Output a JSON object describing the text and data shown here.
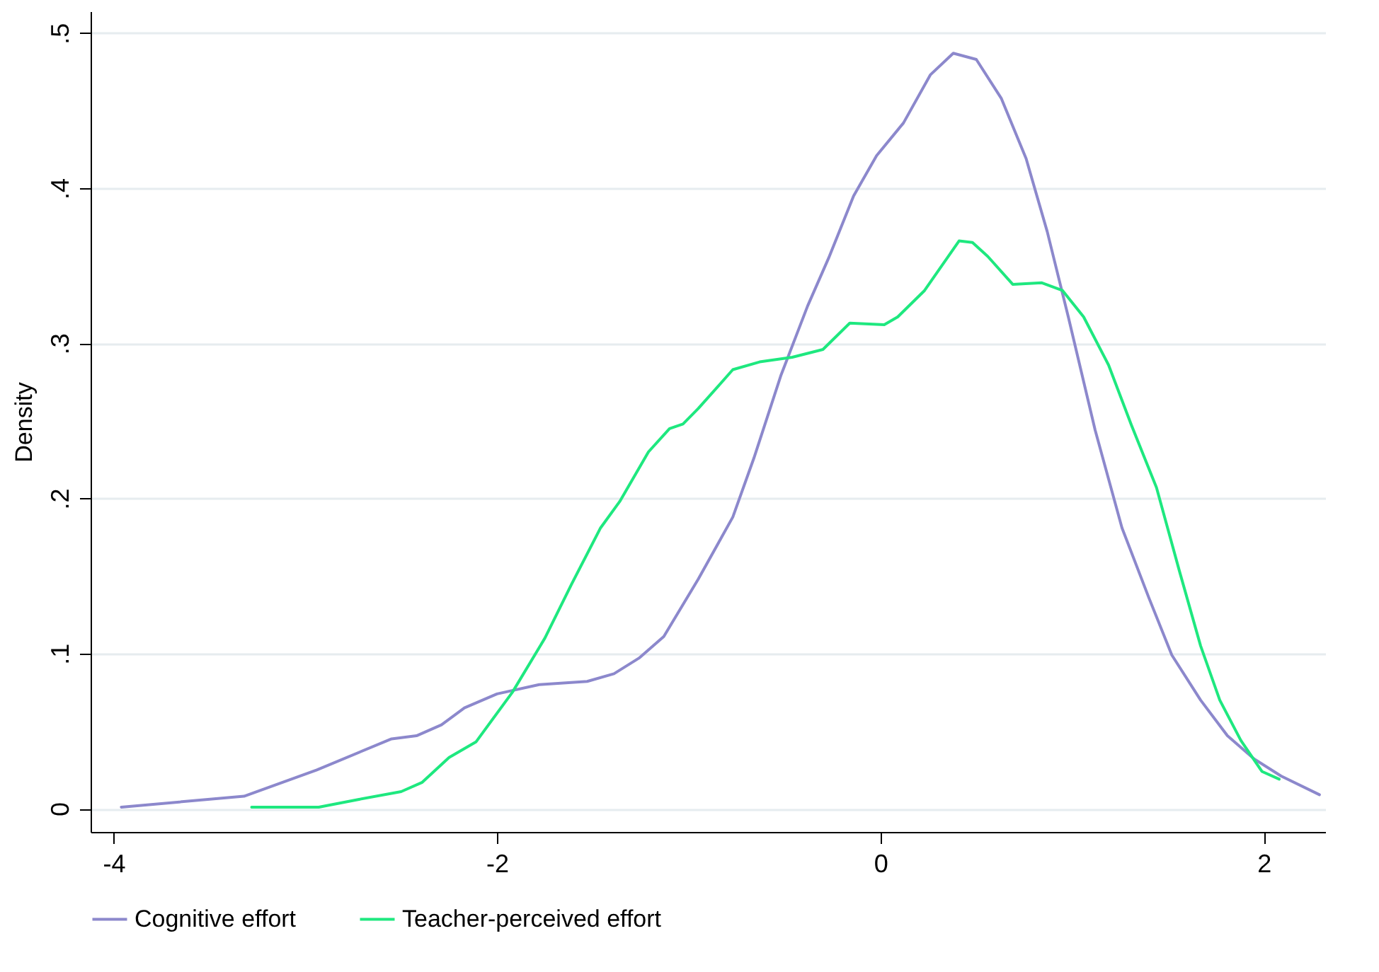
{
  "chart_data": {
    "type": "line",
    "ylabel": "Density",
    "xlim": [
      -4.12,
      2.32
    ],
    "ylim": [
      -0.015,
      0.514
    ],
    "xticks": [
      -4,
      -2,
      0,
      2
    ],
    "yticks": [
      {
        "value": 0,
        "label": "0"
      },
      {
        "value": 0.1,
        "label": ".1"
      },
      {
        "value": 0.2,
        "label": ".2"
      },
      {
        "value": 0.3,
        "label": ".3"
      },
      {
        "value": 0.4,
        "label": ".4"
      },
      {
        "value": 0.5,
        "label": ".5"
      }
    ],
    "grid": "y",
    "legend": "bottom",
    "line_style": "solid",
    "marker": "none",
    "series": [
      {
        "name": "Cognitive effort",
        "color": "#8c88cc",
        "x": [
          -3.96,
          -3.32,
          -2.94,
          -2.55,
          -2.42,
          -2.29,
          -2.17,
          -2.0,
          -1.78,
          -1.53,
          -1.39,
          -1.26,
          -1.13,
          -0.95,
          -0.77,
          -0.66,
          -0.52,
          -0.38,
          -0.27,
          -0.14,
          -0.02,
          0.12,
          0.26,
          0.38,
          0.5,
          0.63,
          0.76,
          0.87,
          0.98,
          1.12,
          1.26,
          1.4,
          1.52,
          1.67,
          1.81,
          1.95,
          2.09,
          2.29
        ],
        "values": [
          0.001,
          0.008,
          0.025,
          0.045,
          0.047,
          0.054,
          0.065,
          0.074,
          0.08,
          0.082,
          0.087,
          0.097,
          0.111,
          0.148,
          0.188,
          0.226,
          0.279,
          0.324,
          0.355,
          0.395,
          0.421,
          0.442,
          0.473,
          0.487,
          0.483,
          0.458,
          0.419,
          0.372,
          0.317,
          0.244,
          0.181,
          0.136,
          0.099,
          0.07,
          0.047,
          0.032,
          0.021,
          0.009
        ]
      },
      {
        "name": "Teacher-perceived effort",
        "color": "#1ee87f",
        "x": [
          -3.28,
          -2.93,
          -2.72,
          -2.5,
          -2.39,
          -2.25,
          -2.11,
          -1.92,
          -1.75,
          -1.61,
          -1.46,
          -1.36,
          -1.21,
          -1.1,
          -1.03,
          -0.95,
          -0.77,
          -0.63,
          -0.46,
          -0.3,
          -0.16,
          0.02,
          0.09,
          0.23,
          0.41,
          0.48,
          0.56,
          0.69,
          0.84,
          0.95,
          1.06,
          1.19,
          1.31,
          1.44,
          1.56,
          1.67,
          1.77,
          1.88,
          1.99,
          2.08
        ],
        "values": [
          0.001,
          0.001,
          0.006,
          0.011,
          0.017,
          0.033,
          0.043,
          0.075,
          0.11,
          0.145,
          0.181,
          0.198,
          0.23,
          0.245,
          0.248,
          0.258,
          0.283,
          0.288,
          0.291,
          0.296,
          0.313,
          0.312,
          0.317,
          0.334,
          0.366,
          0.365,
          0.356,
          0.338,
          0.339,
          0.334,
          0.317,
          0.286,
          0.247,
          0.207,
          0.153,
          0.105,
          0.07,
          0.044,
          0.024,
          0.019
        ]
      }
    ]
  }
}
